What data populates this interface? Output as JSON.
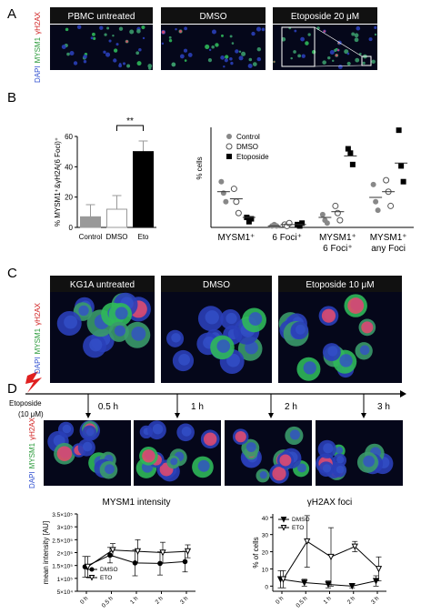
{
  "panels": {
    "a": {
      "label": "A",
      "captions": [
        "PBMC untreated",
        "DMSO",
        "Etoposide 20 μM"
      ],
      "stain": [
        "DAPI",
        "MYSM1",
        "γH2AX"
      ]
    },
    "b": {
      "label": "B"
    },
    "c": {
      "label": "C",
      "captions": [
        "KG1A untreated",
        "DMSO",
        "Etoposide 10 μM"
      ],
      "stain": [
        "DAPI",
        "MYSM1",
        "γH2AX"
      ]
    },
    "d": {
      "label": "D",
      "treatment": "Etoposide",
      "dose": "(10 μM)",
      "times": [
        "0.5 h",
        "1 h",
        "2 h",
        "3 h"
      ],
      "stain": [
        "DAPI",
        "MYSM1",
        "γH2AX"
      ]
    }
  },
  "chart_data": [
    {
      "type": "bar",
      "ylabel": "% MYSM1⁺&γH2A(6 Foci)⁺",
      "categories": [
        "Control",
        "DMSO",
        "Eto"
      ],
      "values": [
        7,
        12,
        50
      ],
      "errors": [
        8,
        9,
        7
      ],
      "colors": [
        "#999999",
        "#ffffff",
        "#000000"
      ],
      "ylim": [
        0,
        60
      ],
      "yticks": [
        0,
        20,
        40,
        60
      ],
      "annotation": "**"
    },
    {
      "type": "dot",
      "ylabel": "% cells",
      "categories": [
        [
          "MYSM1⁺"
        ],
        [
          "6 Foci⁺"
        ],
        [
          "MYSM1⁺",
          "6 Foci⁺"
        ],
        [
          "MYSM1⁺",
          "any Foci"
        ]
      ],
      "series": [
        {
          "name": "Control",
          "marker": "circle",
          "color": "#888888",
          "values": [
            [
              32,
              24,
              18
            ],
            [
              1,
              2,
              1
            ],
            [
              9,
              5,
              3
            ],
            [
              30,
              18,
              12
            ]
          ],
          "means": [
            25,
            1,
            7,
            21
          ]
        },
        {
          "name": "DMSO",
          "marker": "circle-open",
          "color": "#555555",
          "values": [
            [
              27,
              18,
              10
            ],
            [
              2,
              1,
              3
            ],
            [
              15,
              10,
              5
            ],
            [
              33,
              25,
              15
            ]
          ],
          "means": [
            20,
            2,
            11,
            25
          ]
        },
        {
          "name": "Etoposide",
          "marker": "square",
          "color": "#000000",
          "values": [
            [
              7,
              4,
              6
            ],
            [
              2,
              1,
              3
            ],
            [
              55,
              52,
              44
            ],
            [
              68,
              43,
              32
            ]
          ],
          "means": [
            7,
            2,
            50,
            45
          ]
        }
      ],
      "ylim": [
        0,
        70
      ]
    },
    {
      "type": "line",
      "title": "MYSM1 intensity",
      "ylabel": "mean intensity [AU]",
      "categories": [
        "0 h",
        "0.5 h",
        "1 h",
        "2 h",
        "3 h"
      ],
      "series": [
        {
          "name": "DMSO",
          "marker": "circle",
          "color": "#000000",
          "values": [
            145000,
            190000,
            160000,
            158000,
            165000
          ],
          "errors": [
            40000,
            30000,
            50000,
            45000,
            40000
          ]
        },
        {
          "name": "ETO",
          "marker": "triangle-down-open",
          "color": "#000000",
          "values": [
            145000,
            210000,
            205000,
            200000,
            205000
          ],
          "errors": [
            40000,
            25000,
            45000,
            40000,
            25000
          ]
        }
      ],
      "ylim": [
        50000,
        350000
      ],
      "yticks": [
        {
          "value": 50000,
          "label": "5×10⁴"
        },
        {
          "value": 100000,
          "label": "1×10⁵"
        },
        {
          "value": 150000,
          "label": "1.5×10⁵"
        },
        {
          "value": 200000,
          "label": "2×10⁵"
        },
        {
          "value": 250000,
          "label": "2.5×10⁵"
        },
        {
          "value": 300000,
          "label": "3×10⁵"
        },
        {
          "value": 350000,
          "label": "3.5×10⁵"
        }
      ],
      "legend": "lower left"
    },
    {
      "type": "line",
      "title": "γH2AX foci",
      "ylabel": "% of cells",
      "categories": [
        "0 h",
        "0.5 h",
        "1 h",
        "2 h",
        "3 h"
      ],
      "series": [
        {
          "name": "DMSO",
          "marker": "triangle-down",
          "color": "#000000",
          "values": [
            4,
            2,
            1,
            0,
            3
          ],
          "errors": [
            5,
            2,
            2,
            1,
            3
          ]
        },
        {
          "name": "ETO",
          "marker": "triangle-down-open",
          "color": "#000000",
          "values": [
            4,
            26,
            17,
            23,
            10
          ],
          "errors": [
            5,
            15,
            17,
            3,
            7
          ]
        }
      ],
      "ylim": [
        -3,
        42
      ],
      "yticks": [
        0,
        10,
        20,
        30,
        40
      ],
      "legend": "upper left"
    }
  ]
}
